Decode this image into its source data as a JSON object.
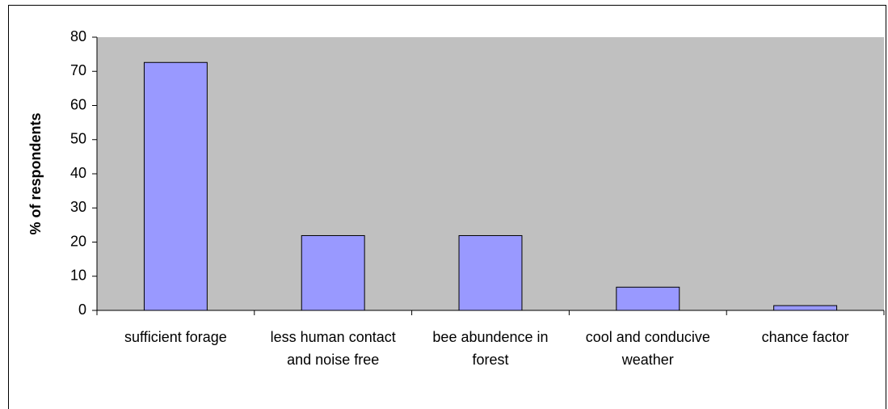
{
  "chart_data": {
    "type": "bar",
    "y_label": "% of respondents",
    "categories": [
      "sufficient forage",
      "less human contact and noise free",
      "bee abundence in forest",
      "cool and conducive weather",
      "chance factor"
    ],
    "values": [
      72.6,
      21.9,
      21.9,
      6.8,
      1.4
    ],
    "color": "#9999ff",
    "plot_background": "#c0c0c0",
    "ylim": [
      0,
      80
    ],
    "yticks": [
      0,
      10,
      20,
      30,
      40,
      50,
      60,
      70,
      80
    ]
  }
}
